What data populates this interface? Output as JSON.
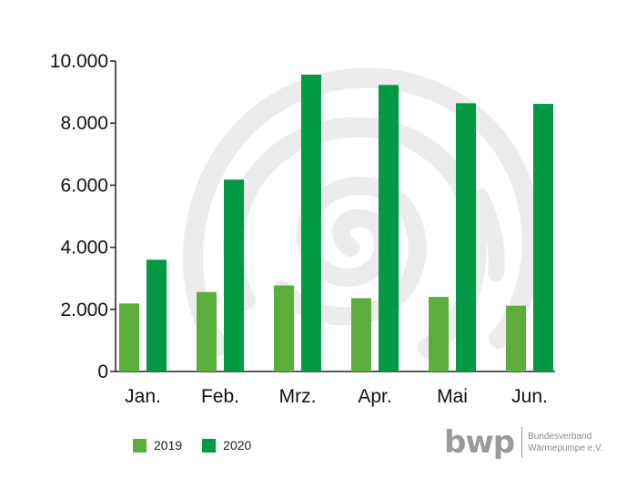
{
  "chart_data": {
    "type": "bar",
    "categories": [
      "Jan.",
      "Feb.",
      "Mrz.",
      "Apr.",
      "Mai",
      "Jun."
    ],
    "series": [
      {
        "name": "2019",
        "values": [
          2190,
          2560,
          2770,
          2360,
          2400,
          2120
        ]
      },
      {
        "name": "2020",
        "values": [
          3600,
          6180,
          9560,
          9230,
          8640,
          8620
        ]
      }
    ],
    "yticks": [
      "0",
      "2.000",
      "4.000",
      "6.000",
      "8.000",
      "10.000"
    ],
    "ylim": [
      0,
      10000
    ],
    "grid": false,
    "legend_position": "bottom-left",
    "colors": {
      "2019": "#5bae3c",
      "2020": "#009a44",
      "watermark": "#ececec"
    }
  },
  "logo": {
    "word": "bwp",
    "line1": "Bundesverband",
    "line2": "Wärmepumpe e.V."
  }
}
